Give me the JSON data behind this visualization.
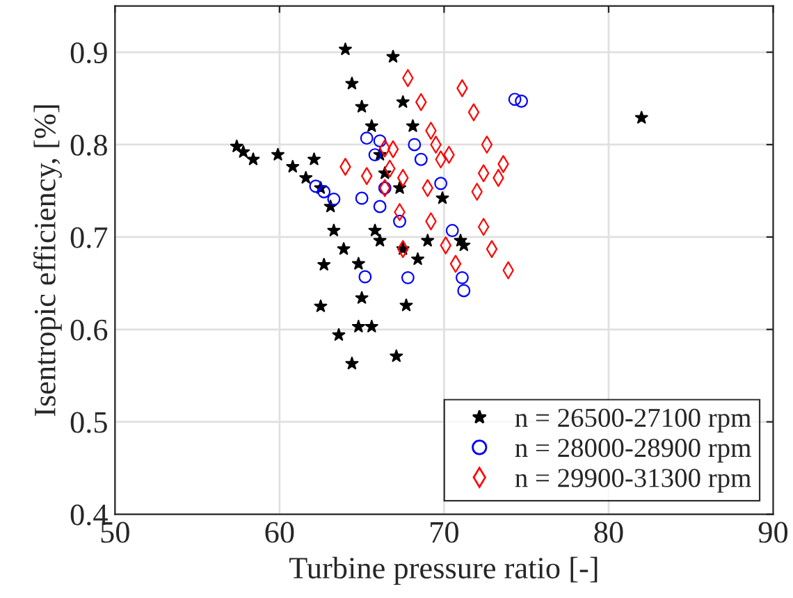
{
  "chart_data": {
    "type": "scatter",
    "xlabel": "Turbine pressure ratio [-]",
    "ylabel": "Isentropic efficiency, [%]",
    "xlim": [
      50,
      90
    ],
    "xticks": [
      50,
      60,
      70,
      80,
      90
    ],
    "ylim": [
      0.4,
      0.95
    ],
    "yticks": [
      0.4,
      0.5,
      0.6,
      0.7,
      0.8,
      0.9
    ],
    "grid": true,
    "legend": "bottom right",
    "series": [
      {
        "name": "n = 26500-27100 rpm",
        "color": "#000000",
        "marker": "star",
        "x": [
          57.4,
          57.8,
          58.4,
          59.9,
          60.8,
          61.6,
          62.5,
          63.1,
          63.3,
          63.9,
          64.8,
          65.0,
          64.8,
          62.5,
          63.6,
          64.4,
          62.1,
          62.7,
          65.6,
          64.0,
          64.4,
          65.0,
          65.6,
          66.1,
          66.4,
          66.1,
          66.9,
          67.5,
          68.1,
          67.3,
          65.8,
          67.5,
          68.4,
          67.7,
          67.1,
          69.9,
          71.2,
          71.0,
          69.0,
          82.0
        ],
        "values": [
          0.798,
          0.792,
          0.784,
          0.789,
          0.776,
          0.764,
          0.753,
          0.733,
          0.707,
          0.687,
          0.671,
          0.634,
          0.603,
          0.625,
          0.594,
          0.563,
          0.784,
          0.67,
          0.603,
          0.903,
          0.866,
          0.841,
          0.82,
          0.789,
          0.769,
          0.696,
          0.895,
          0.846,
          0.82,
          0.753,
          0.707,
          0.687,
          0.676,
          0.626,
          0.571,
          0.742,
          0.691,
          0.696,
          0.696,
          0.829
        ]
      },
      {
        "name": "n = 28000-28900 rpm",
        "color": "#0000ff",
        "marker": "circle",
        "x": [
          62.2,
          62.7,
          63.3,
          65.2,
          65.3,
          65.8,
          65.0,
          66.1,
          66.1,
          66.4,
          67.3,
          67.8,
          68.2,
          68.6,
          69.8,
          70.5,
          71.1,
          71.2,
          74.3,
          74.7
        ],
        "values": [
          0.755,
          0.749,
          0.741,
          0.657,
          0.807,
          0.789,
          0.742,
          0.733,
          0.804,
          0.753,
          0.717,
          0.656,
          0.8,
          0.784,
          0.758,
          0.707,
          0.656,
          0.642,
          0.849,
          0.847
        ]
      },
      {
        "name": "n = 29900-31300 rpm",
        "color": "#ff0000",
        "marker": "diamond",
        "x": [
          64.0,
          65.3,
          66.4,
          66.4,
          67.8,
          68.6,
          69.2,
          69.5,
          66.9,
          66.7,
          67.3,
          67.5,
          67.5,
          69.8,
          70.3,
          69.0,
          69.2,
          70.1,
          70.7,
          71.1,
          71.8,
          72.6,
          73.6,
          73.3,
          72.4,
          72.0,
          72.4,
          72.9,
          73.9
        ],
        "values": [
          0.776,
          0.766,
          0.753,
          0.796,
          0.872,
          0.846,
          0.815,
          0.8,
          0.795,
          0.774,
          0.727,
          0.687,
          0.764,
          0.784,
          0.789,
          0.753,
          0.717,
          0.691,
          0.671,
          0.861,
          0.835,
          0.8,
          0.779,
          0.764,
          0.769,
          0.749,
          0.711,
          0.687,
          0.664
        ]
      }
    ]
  }
}
